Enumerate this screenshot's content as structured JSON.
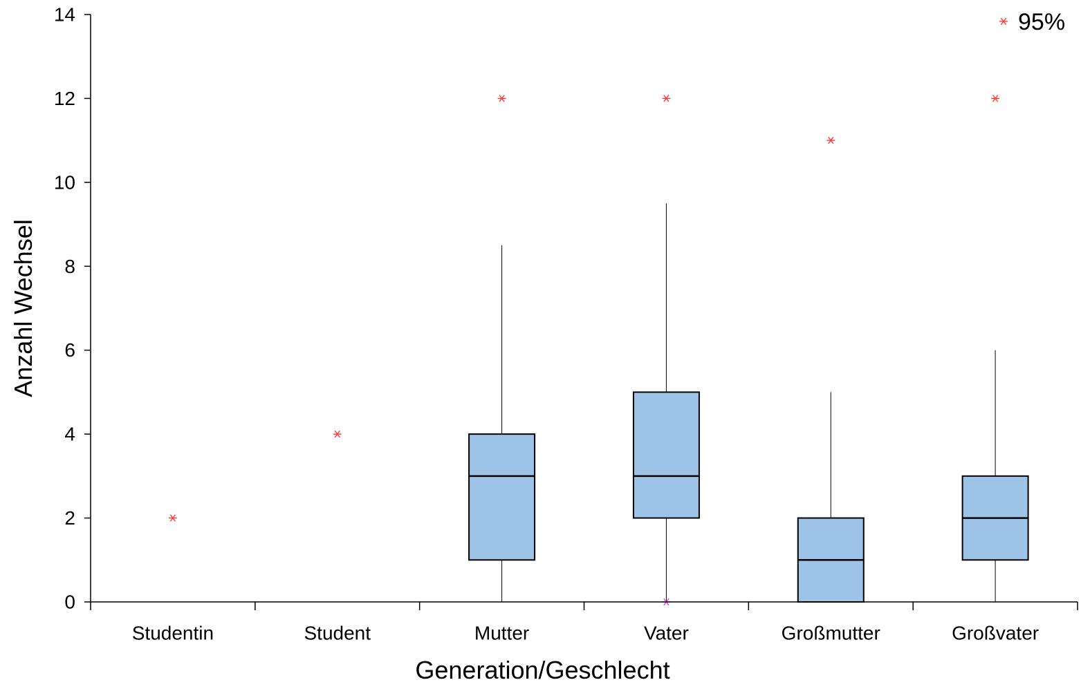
{
  "chart_data": {
    "type": "box",
    "xlabel": "Generation/Geschlecht",
    "ylabel": "Anzahl Wechsel",
    "ylim": [
      0,
      14
    ],
    "yticks": [
      0,
      2,
      4,
      6,
      8,
      10,
      12,
      14
    ],
    "grid": false,
    "legend": {
      "position": "top-right",
      "marker": "asterisk",
      "label": "95%"
    },
    "colors": {
      "box_fill": "#9dc3e6",
      "box_stroke": "#000000",
      "p95_marker": "#ff3b3b",
      "min_marker": "#e040e0"
    },
    "categories": [
      "Studentin",
      "Student",
      "Mutter",
      "Vater",
      "Großmutter",
      "Großvater"
    ],
    "boxes": [
      {
        "category": "Studentin",
        "q1": null,
        "median": null,
        "q3": null,
        "whisker_low": null,
        "whisker_high": null,
        "p95": 2
      },
      {
        "category": "Student",
        "q1": null,
        "median": null,
        "q3": null,
        "whisker_low": null,
        "whisker_high": null,
        "p95": 4
      },
      {
        "category": "Mutter",
        "q1": 1,
        "median": 3,
        "q3": 4,
        "whisker_low": 0,
        "whisker_high": 8.5,
        "p95": 12
      },
      {
        "category": "Vater",
        "q1": 2,
        "median": 3,
        "q3": 5,
        "whisker_low": 0,
        "whisker_high": 9.5,
        "p95": 12,
        "min_marker": 0
      },
      {
        "category": "Großmutter",
        "q1": 0,
        "median": 1,
        "q3": 2,
        "whisker_low": 0,
        "whisker_high": 5,
        "p95": 11
      },
      {
        "category": "Großvater",
        "q1": 1,
        "median": 2,
        "q3": 3,
        "whisker_low": 0,
        "whisker_high": 6,
        "p95": 12
      }
    ]
  }
}
